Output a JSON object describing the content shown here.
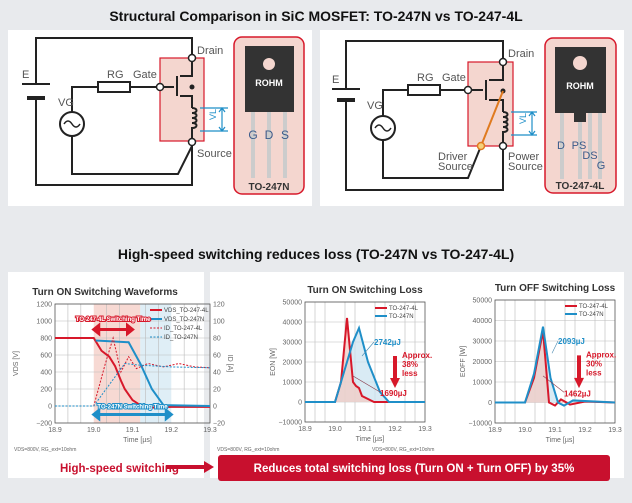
{
  "top": {
    "title": "Structural Comparison in SiC MOSFET: TO-247N vs TO-247-4L",
    "left": {
      "e": "E",
      "rg": "RG",
      "gate": "Gate",
      "drain": "Drain",
      "source": "Source",
      "vg": "VG",
      "vl": "VL",
      "brand": "ROHM",
      "pins": [
        "G",
        "D",
        "S"
      ],
      "package": "TO-247N"
    },
    "right": {
      "e": "E",
      "rg": "RG",
      "gate": "Gate",
      "drain": "Drain",
      "driver_source": [
        "Driver",
        "Source"
      ],
      "power_source": [
        "Power",
        "Source"
      ],
      "vg": "VG",
      "vl": "VL",
      "brand": "ROHM",
      "pins": [
        "D",
        "PS",
        "DS",
        "G"
      ],
      "package": "TO-247-4L"
    }
  },
  "bottom": {
    "title": "High-speed switching reduces loss (TO-247N vs TO-247-4L)",
    "cause": "High-speed switching",
    "result": "Reduces total switching loss (Turn ON + Turn OFF) by 35%",
    "condition": "VDS=800V, RG_ext=10ohm"
  },
  "colors": {
    "red": "#d7182a",
    "blue": "#1f8fc8",
    "pink_fill": "#f4c9c1",
    "blue_fill": "#c9e2f0"
  },
  "chart_data": [
    {
      "type": "line",
      "title": "Turn ON Switching Waveforms",
      "xlabel": "Time [µs]",
      "ylabel": "VDS [V]",
      "y2label": "ID [A]",
      "xlim": [
        18.9,
        19.3
      ],
      "ylim": [
        -200,
        1200
      ],
      "y2lim": [
        -20,
        120
      ],
      "xticks": [
        "18.9",
        "19.0",
        "19.1",
        "19.2",
        "19.3"
      ],
      "yticks": [
        "1200",
        "1000",
        "800",
        "600",
        "400",
        "200",
        "0",
        "−200"
      ],
      "y2ticks": [
        "120",
        "100",
        "80",
        "60",
        "40",
        "20",
        "0",
        "−20"
      ],
      "grid": true,
      "legend": "top-right",
      "annotations": [
        "TO-247-4L Switching Time",
        "TO-247N Switching Time"
      ],
      "series": [
        {
          "name": "VDS_TO-247-4L",
          "axis": "left",
          "color": "#d7182a",
          "style": "solid",
          "points": [
            [
              18.9,
              800
            ],
            [
              19.0,
              800
            ],
            [
              19.02,
              650
            ],
            [
              19.04,
              580
            ],
            [
              19.055,
              470
            ],
            [
              19.07,
              300
            ],
            [
              19.08,
              200
            ],
            [
              19.1,
              70
            ],
            [
              19.12,
              10
            ],
            [
              19.14,
              -20
            ],
            [
              19.2,
              -10
            ],
            [
              19.3,
              -10
            ]
          ]
        },
        {
          "name": "VDS_TO-247N",
          "axis": "left",
          "color": "#1f8fc8",
          "style": "solid",
          "points": [
            [
              19.005,
              770
            ],
            [
              19.09,
              750
            ],
            [
              19.12,
              500
            ],
            [
              19.15,
              200
            ],
            [
              19.18,
              10
            ],
            [
              19.3,
              0
            ]
          ]
        },
        {
          "name": "ID_TO-247-4L",
          "axis": "right",
          "color": "#d7182a",
          "style": "dashed",
          "points": [
            [
              18.9,
              0
            ],
            [
              19.0,
              0
            ],
            [
              19.03,
              50
            ],
            [
              19.05,
              80
            ],
            [
              19.07,
              40
            ],
            [
              19.09,
              58
            ],
            [
              19.11,
              44
            ],
            [
              19.14,
              50
            ],
            [
              19.18,
              46
            ],
            [
              19.22,
              50
            ],
            [
              19.26,
              46
            ],
            [
              19.3,
              45
            ]
          ]
        },
        {
          "name": "ID_TO-247N",
          "axis": "right",
          "color": "#1f8fc8",
          "style": "dashed",
          "points": [
            [
              18.9,
              0
            ],
            [
              19.0,
              0
            ],
            [
              19.04,
              25
            ],
            [
              19.08,
              50
            ],
            [
              19.12,
              48
            ],
            [
              19.2,
              46
            ],
            [
              19.3,
              45
            ]
          ]
        }
      ]
    },
    {
      "type": "line",
      "title": "Turn ON Switching Loss",
      "xlabel": "Time [µs]",
      "ylabel": "EON [W]",
      "xlim": [
        18.9,
        19.3
      ],
      "ylim": [
        -10000,
        50000
      ],
      "xticks": [
        "18.9",
        "19.0",
        "19.1",
        "19.2",
        "19.3"
      ],
      "yticks": [
        "50000",
        "40000",
        "30000",
        "20000",
        "10000",
        "0",
        "−10000"
      ],
      "grid": true,
      "legend": "top-right",
      "annotations": {
        "n_energy": "2742µJ",
        "l_energy": "1690µJ",
        "reduction": [
          "Approx.",
          "38%",
          "less"
        ]
      },
      "series": [
        {
          "name": "TO-247-4L",
          "color": "#d7182a",
          "points": [
            [
              18.9,
              0
            ],
            [
              19.0,
              0
            ],
            [
              19.02,
              10000
            ],
            [
              19.04,
              42000
            ],
            [
              19.06,
              10000
            ],
            [
              19.07,
              8000
            ],
            [
              19.08,
              7000
            ],
            [
              19.09,
              3000
            ],
            [
              19.11,
              1500
            ],
            [
              19.13,
              0
            ],
            [
              19.3,
              0
            ]
          ]
        },
        {
          "name": "TO-247N",
          "color": "#1f8fc8",
          "points": [
            [
              18.9,
              0
            ],
            [
              19.0,
              0
            ],
            [
              19.03,
              15000
            ],
            [
              19.06,
              30000
            ],
            [
              19.08,
              37000
            ],
            [
              19.11,
              20000
            ],
            [
              19.15,
              5000
            ],
            [
              19.18,
              0
            ],
            [
              19.3,
              0
            ]
          ]
        }
      ]
    },
    {
      "type": "line",
      "title": "Turn OFF Switching Loss",
      "xlabel": "Time [µs]",
      "ylabel": "EOFF [W]",
      "xlim": [
        18.9,
        19.3
      ],
      "ylim": [
        -10000,
        50000
      ],
      "xticks": [
        "18.9",
        "19.0",
        "19.1",
        "19.2",
        "19.3"
      ],
      "yticks": [
        "50000",
        "40000",
        "30000",
        "20000",
        "10000",
        "0",
        "−10000"
      ],
      "grid": true,
      "legend": "top-right",
      "annotations": {
        "n_energy": "2093µJ",
        "l_energy": "1462µJ",
        "reduction": [
          "Approx.",
          "30%",
          "less"
        ]
      },
      "series": [
        {
          "name": "TO-247-4L",
          "color": "#d7182a",
          "points": [
            [
              18.9,
              0
            ],
            [
              19.0,
              0
            ],
            [
              19.03,
              12000
            ],
            [
              19.06,
              35000
            ],
            [
              19.08,
              0
            ],
            [
              19.1,
              -1500
            ],
            [
              19.12,
              1500
            ],
            [
              19.15,
              -1000
            ],
            [
              19.2,
              500
            ],
            [
              19.3,
              0
            ]
          ]
        },
        {
          "name": "TO-247N",
          "color": "#1f8fc8",
          "points": [
            [
              18.9,
              0
            ],
            [
              19.0,
              0
            ],
            [
              19.03,
              14000
            ],
            [
              19.06,
              37000
            ],
            [
              19.085,
              12000
            ],
            [
              19.11,
              0
            ],
            [
              19.13,
              -1500
            ],
            [
              19.16,
              1000
            ],
            [
              19.3,
              0
            ]
          ]
        }
      ]
    }
  ]
}
